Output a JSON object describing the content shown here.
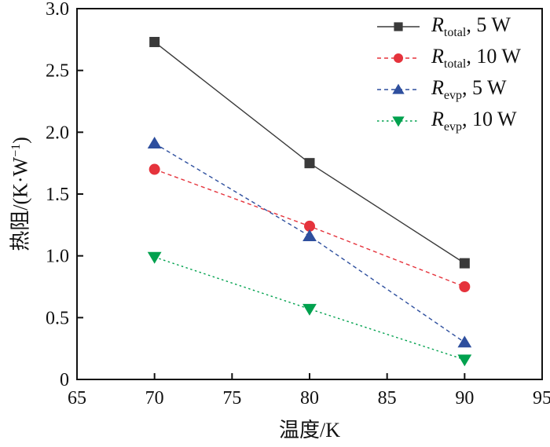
{
  "labels": {
    "x": "温度/K",
    "y_pre": "热阻/(K·W",
    "y_sup": "−1",
    "y_post": ")"
  },
  "chart_data": {
    "type": "line",
    "title": "",
    "xlabel": "温度/K",
    "ylabel": "热阻/(K·W⁻¹)",
    "xlim": [
      65,
      95
    ],
    "ylim": [
      0,
      3.0
    ],
    "xticks": [
      65,
      70,
      75,
      80,
      85,
      90,
      95
    ],
    "yticks": [
      0,
      0.5,
      1.0,
      1.5,
      2.0,
      2.5,
      3.0
    ],
    "ytick_labels": [
      "0",
      "0.5",
      "1.0",
      "1.5",
      "2.0",
      "2.5",
      "3.0"
    ],
    "grid": false,
    "legend_position": "top-right",
    "x": [
      70,
      80,
      90
    ],
    "series": [
      {
        "name": "R_total, 5 W",
        "values": [
          2.73,
          1.75,
          0.94
        ],
        "color": "#3a3a3a",
        "marker": "square",
        "line_style": "solid"
      },
      {
        "name": "R_total, 10 W",
        "values": [
          1.7,
          1.24,
          0.75
        ],
        "color": "#e5333c",
        "marker": "circle",
        "line_style": "dashed"
      },
      {
        "name": "R_evp, 5 W",
        "values": [
          1.91,
          1.16,
          0.3
        ],
        "color": "#2e4f9e",
        "marker": "triangle-up",
        "line_style": "dashed"
      },
      {
        "name": "R_evp, 10 W",
        "values": [
          0.99,
          0.57,
          0.16
        ],
        "color": "#00a14e",
        "marker": "triangle-down",
        "line_style": "dotted"
      }
    ],
    "legend": {
      "entries": [
        {
          "r": "R",
          "sub": "total",
          "suffix": ", 5 W"
        },
        {
          "r": "R",
          "sub": "total",
          "suffix": ", 10 W"
        },
        {
          "r": "R",
          "sub": "evp",
          "suffix": ", 5 W"
        },
        {
          "r": "R",
          "sub": "evp",
          "suffix": ", 10 W"
        }
      ]
    }
  }
}
